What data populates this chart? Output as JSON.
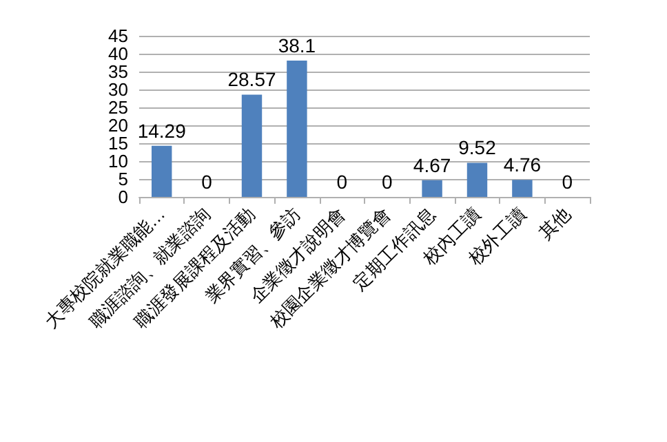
{
  "chart_data": {
    "type": "bar",
    "categories": [
      "大專校院就業職能…",
      "職涯諮詢、就業諮詢",
      "職涯發展課程及活動",
      "業界實習、參訪",
      "企業徵才說明會",
      "校園企業徵才博覽會",
      "定期工作訊息",
      "校內工讀",
      "校外工讀",
      "其他"
    ],
    "values": [
      14.29,
      0,
      28.57,
      38.1,
      0,
      0,
      4.67,
      9.52,
      4.76,
      0
    ],
    "color": "#4f81bd",
    "ylim": [
      0,
      45
    ],
    "yticks": [
      0,
      5,
      10,
      15,
      20,
      25,
      30,
      35,
      40,
      45
    ],
    "grid": "y",
    "data_labels": true
  }
}
